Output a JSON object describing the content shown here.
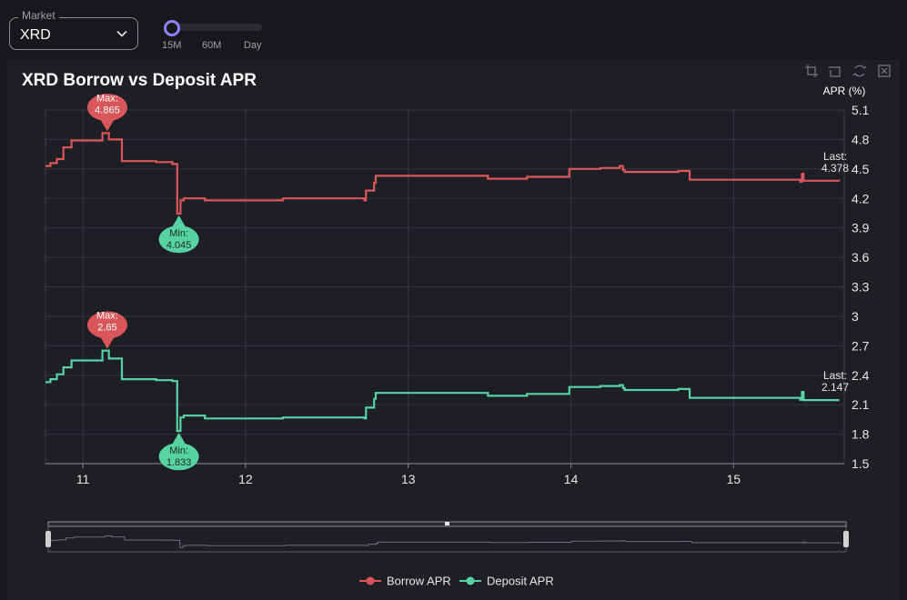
{
  "market": {
    "legend": "Market",
    "value": "XRD"
  },
  "interval_slider": {
    "options": [
      "15M",
      "60M",
      "Day"
    ],
    "selected": "15M"
  },
  "toolbox": {
    "icons": [
      "zoom-icon",
      "zoom-reset-icon",
      "restore-icon",
      "save-image-icon"
    ]
  },
  "colors": {
    "borrow": "#d9575a",
    "deposit": "#56d2a4",
    "background": "#1e1f24"
  },
  "chart_data": {
    "type": "line",
    "title": "XRD Borrow vs Deposit APR",
    "xlabel": "",
    "ylabel": "APR (%)",
    "x_ticks": [
      "11",
      "12",
      "13",
      "14",
      "15"
    ],
    "xlim": [
      10.77,
      15.68
    ],
    "y_ticks": [
      "1.5",
      "1.8",
      "2.1",
      "2.4",
      "2.7",
      "3",
      "3.3",
      "3.6",
      "3.9",
      "4.2",
      "4.5",
      "4.8",
      "5.1"
    ],
    "ylim": [
      1.5,
      5.1
    ],
    "grid": true,
    "legend_position": "bottom-center",
    "series": [
      {
        "name": "Borrow APR",
        "color": "#d9575a",
        "step": true,
        "x": [
          10.77,
          10.8,
          10.84,
          10.88,
          10.93,
          11.12,
          11.16,
          11.24,
          11.45,
          11.55,
          11.58,
          11.6,
          11.62,
          11.74,
          11.75,
          12.22,
          12.23,
          12.73,
          12.74,
          12.79,
          12.8,
          13.48,
          13.49,
          13.72,
          13.73,
          13.98,
          13.99,
          14.17,
          14.18,
          14.29,
          14.3,
          14.32,
          14.33,
          14.65,
          14.66,
          14.72,
          14.73,
          15.4,
          15.41,
          15.42,
          15.43,
          15.65
        ],
        "y": [
          4.53,
          4.56,
          4.6,
          4.72,
          4.79,
          4.865,
          4.8,
          4.58,
          4.57,
          4.55,
          4.045,
          4.18,
          4.2,
          4.2,
          4.18,
          4.18,
          4.2,
          4.18,
          4.28,
          4.36,
          4.43,
          4.43,
          4.4,
          4.4,
          4.42,
          4.42,
          4.5,
          4.5,
          4.51,
          4.51,
          4.53,
          4.49,
          4.47,
          4.47,
          4.48,
          4.48,
          4.39,
          4.39,
          4.37,
          4.45,
          4.38,
          4.378
        ],
        "max": {
          "label": "Max:",
          "value": "4.865",
          "x": 11.15,
          "y": 4.865
        },
        "min": {
          "label": "Min:",
          "value": "4.045",
          "x": 11.59,
          "y": 4.045
        },
        "last": {
          "label": "Last:",
          "value": "4.378"
        }
      },
      {
        "name": "Deposit APR",
        "color": "#56d2a4",
        "step": true,
        "x": [
          10.77,
          10.8,
          10.84,
          10.88,
          10.93,
          11.12,
          11.16,
          11.24,
          11.45,
          11.55,
          11.58,
          11.6,
          11.62,
          11.74,
          11.75,
          12.22,
          12.23,
          12.73,
          12.74,
          12.79,
          12.8,
          13.48,
          13.49,
          13.72,
          13.73,
          13.98,
          13.99,
          14.17,
          14.18,
          14.29,
          14.3,
          14.32,
          14.33,
          14.65,
          14.66,
          14.72,
          14.73,
          15.4,
          15.41,
          15.42,
          15.43,
          15.65
        ],
        "y": [
          2.33,
          2.36,
          2.41,
          2.48,
          2.55,
          2.65,
          2.57,
          2.36,
          2.35,
          2.34,
          1.833,
          1.97,
          1.99,
          1.99,
          1.96,
          1.96,
          1.97,
          1.96,
          2.07,
          2.16,
          2.22,
          2.22,
          2.19,
          2.19,
          2.21,
          2.21,
          2.28,
          2.28,
          2.29,
          2.29,
          2.3,
          2.27,
          2.25,
          2.25,
          2.26,
          2.26,
          2.17,
          2.17,
          2.15,
          2.23,
          2.147,
          2.147
        ],
        "max": {
          "label": "Max:",
          "value": "2.65",
          "x": 11.15,
          "y": 2.65
        },
        "min": {
          "label": "Min:",
          "value": "1.833",
          "x": 11.59,
          "y": 1.833
        },
        "last": {
          "label": "Last:",
          "value": "2.147"
        }
      }
    ]
  }
}
